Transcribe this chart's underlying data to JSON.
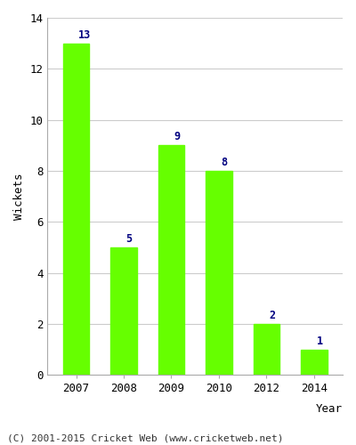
{
  "categories": [
    "2007",
    "2008",
    "2009",
    "2010",
    "2012",
    "2014"
  ],
  "values": [
    13,
    5,
    9,
    8,
    2,
    1
  ],
  "bar_color": "#66ff00",
  "label_color": "#000080",
  "xlabel": "Year",
  "ylabel": "Wickets",
  "ylim": [
    0,
    14
  ],
  "yticks": [
    0,
    2,
    4,
    6,
    8,
    10,
    12,
    14
  ],
  "title": "",
  "footer": "(C) 2001-2015 Cricket Web (www.cricketweb.net)",
  "background_color": "#ffffff",
  "grid_color": "#cccccc",
  "label_fontsize": 8.5,
  "axis_fontsize": 9,
  "footer_fontsize": 8,
  "bar_width": 0.55
}
